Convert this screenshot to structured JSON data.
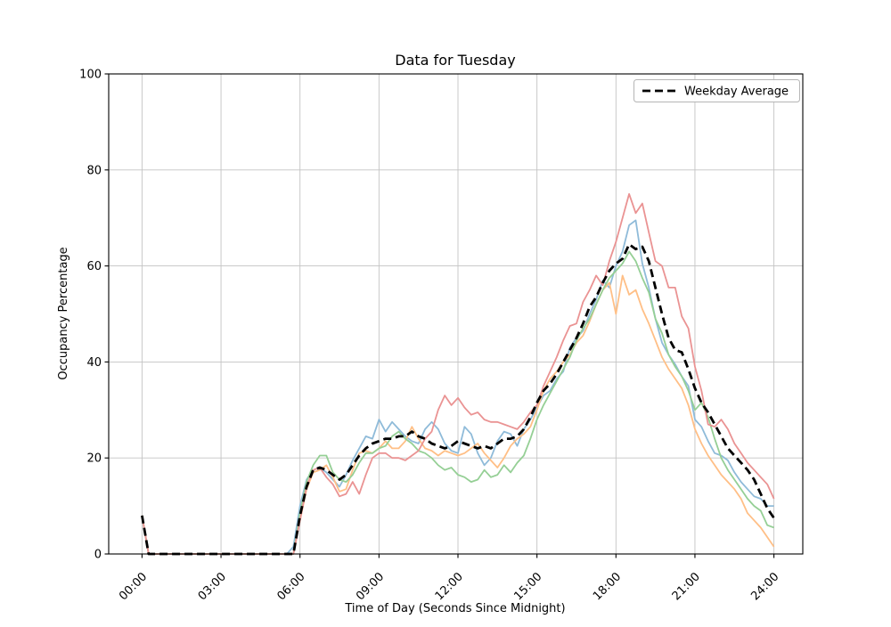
{
  "chart_data": {
    "type": "line",
    "title": "Data for Tuesday",
    "xlabel": "Time of Day (Seconds Since Midnight)",
    "ylabel": "Occupancy Percentage",
    "ylim": [
      0,
      100
    ],
    "grid": true,
    "legend_position": "upper right",
    "x_start_hour": 0,
    "x_step_hours": 0.25,
    "n_points": 97,
    "x_ticks": [
      {
        "hour": 0,
        "label": "00:00"
      },
      {
        "hour": 3,
        "label": "03:00"
      },
      {
        "hour": 6,
        "label": "06:00"
      },
      {
        "hour": 9,
        "label": "09:00"
      },
      {
        "hour": 12,
        "label": "12:00"
      },
      {
        "hour": 15,
        "label": "15:00"
      },
      {
        "hour": 18,
        "label": "18:00"
      },
      {
        "hour": 21,
        "label": "21:00"
      },
      {
        "hour": 24,
        "label": "24:00"
      }
    ],
    "y_ticks": [
      0,
      20,
      40,
      60,
      80,
      100
    ],
    "series": [
      {
        "name": "series_1",
        "color": "#8FBBD9",
        "width": 1.8,
        "dashed": false,
        "values": [
          8,
          0,
          0,
          0,
          0,
          0,
          0,
          0,
          0,
          0,
          0,
          0,
          0,
          0,
          0,
          0,
          0,
          0,
          0,
          0,
          0,
          0,
          0,
          1.5,
          10,
          15.5,
          17.5,
          18,
          17,
          15.5,
          14,
          16.5,
          19.5,
          22,
          24.5,
          24,
          28,
          25.5,
          27.5,
          26,
          24.5,
          23.5,
          23,
          26,
          27.5,
          26,
          23,
          21.5,
          21,
          26.5,
          25,
          21,
          18.5,
          20,
          23.5,
          25.5,
          25,
          22.5,
          26,
          28,
          30.5,
          33,
          34,
          36.5,
          38,
          43,
          45,
          46.5,
          50,
          53,
          57,
          55.5,
          60,
          63,
          68.5,
          69.5,
          60.5,
          55.5,
          49,
          44,
          41.5,
          39.5,
          37,
          35,
          28,
          26.5,
          23.5,
          21,
          20.5,
          19.5,
          17,
          15,
          13.5,
          12,
          11.5,
          10,
          10
        ]
      },
      {
        "name": "series_2",
        "color": "#FFBF86",
        "width": 1.8,
        "dashed": false,
        "values": [
          8,
          0,
          0,
          0,
          0,
          0,
          0,
          0,
          0,
          0,
          0,
          0,
          0,
          0,
          0,
          0,
          0,
          0,
          0,
          0,
          0,
          0,
          0,
          0,
          7,
          13.5,
          17,
          17.5,
          18.5,
          16,
          13,
          13.5,
          17.5,
          21,
          21.5,
          21,
          22,
          23.5,
          22,
          22,
          23.5,
          26.5,
          24,
          22,
          21.5,
          20.5,
          21.5,
          21,
          20.5,
          21,
          22,
          23,
          21,
          19.5,
          18,
          20,
          22.5,
          24,
          25,
          26.5,
          30,
          34,
          36.5,
          38,
          40,
          41.5,
          44,
          45.5,
          48.5,
          52,
          55,
          56.5,
          50,
          58,
          54,
          55,
          51,
          48,
          44.5,
          41,
          38.5,
          36.5,
          34.5,
          31,
          26,
          23,
          20.5,
          18.5,
          16.5,
          15,
          13.5,
          11.5,
          8.5,
          7,
          5.5,
          3.5,
          1.5
        ]
      },
      {
        "name": "series_3",
        "color": "#95CF95",
        "width": 1.8,
        "dashed": false,
        "values": [
          8,
          0,
          0,
          0,
          0,
          0,
          0,
          0,
          0,
          0,
          0,
          0,
          0,
          0,
          0,
          0,
          0,
          0,
          0,
          0,
          0,
          0,
          0,
          0,
          8.5,
          15,
          18.5,
          20.5,
          20.5,
          17,
          15.5,
          15,
          16.5,
          19,
          21,
          21,
          22,
          22.5,
          24.5,
          25.5,
          24,
          23,
          21.5,
          21,
          20,
          18.5,
          17.5,
          18,
          16.5,
          16,
          15,
          15.5,
          17.5,
          16,
          16.5,
          18.5,
          17,
          19,
          20.5,
          24,
          28,
          31,
          33.5,
          36,
          38.5,
          41,
          44.5,
          47,
          49,
          52,
          55,
          57.5,
          59,
          60.5,
          63,
          61,
          57.5,
          54.5,
          49,
          46,
          41.5,
          39,
          37,
          34,
          30,
          31.5,
          28.5,
          24,
          20,
          17.5,
          15.5,
          13.5,
          11.5,
          10,
          9,
          6,
          5.5
        ]
      },
      {
        "name": "series_4",
        "color": "#EA9393",
        "width": 1.8,
        "dashed": false,
        "values": [
          8,
          0,
          0,
          0,
          0,
          0,
          0,
          0,
          0,
          0,
          0,
          0,
          0,
          0,
          0,
          0,
          0,
          0,
          0,
          0,
          0,
          0,
          0,
          0,
          7,
          14,
          17.5,
          18,
          16,
          14.5,
          12,
          12.5,
          15,
          12.5,
          16.5,
          20,
          21,
          21,
          20,
          20,
          19.5,
          20.5,
          21.5,
          24,
          25.5,
          30,
          33,
          31,
          32.5,
          30.5,
          29,
          29.5,
          28,
          27.5,
          27.5,
          27,
          26.5,
          26,
          27.5,
          29.5,
          31,
          35,
          38,
          41,
          44.5,
          47.5,
          48,
          52.5,
          55,
          58,
          56,
          61,
          65,
          70,
          75,
          71,
          73,
          67,
          61,
          60,
          55.5,
          55.5,
          49.5,
          47,
          39,
          34,
          27,
          26.5,
          28,
          26,
          23,
          21,
          19,
          17.5,
          16,
          14.5,
          11.5
        ]
      },
      {
        "name": "Weekday Average",
        "color": "#000000",
        "width": 2.8,
        "dashed": true,
        "values": [
          8,
          0,
          0,
          0,
          0,
          0,
          0,
          0,
          0,
          0,
          0,
          0,
          0,
          0,
          0,
          0,
          0,
          0,
          0,
          0,
          0,
          0,
          0,
          0,
          8,
          14,
          17.5,
          18,
          17.5,
          16.5,
          15.5,
          16.5,
          18.5,
          20.5,
          22,
          23,
          23.5,
          24,
          24,
          24.5,
          24.5,
          25.5,
          24.5,
          24,
          23,
          22.5,
          22,
          22.5,
          23.5,
          23,
          22.5,
          22,
          22.5,
          22,
          23,
          24,
          24,
          24.5,
          26,
          28.5,
          31.5,
          34,
          35.5,
          37.5,
          40,
          42.5,
          45,
          48,
          51.5,
          53.5,
          56.5,
          59,
          60.5,
          61.5,
          64.5,
          63.5,
          64,
          61,
          55.5,
          50,
          45,
          42.5,
          42,
          38.5,
          34.5,
          31.5,
          29.5,
          27,
          24.5,
          22,
          20.5,
          19,
          17.5,
          15.5,
          12.5,
          9.5,
          7.5
        ]
      }
    ]
  },
  "legend": {
    "entries": [
      "Weekday Average"
    ]
  },
  "style_colors": {
    "grid": "#c3c3c3",
    "spine": "#000000",
    "background": "#ffffff"
  }
}
